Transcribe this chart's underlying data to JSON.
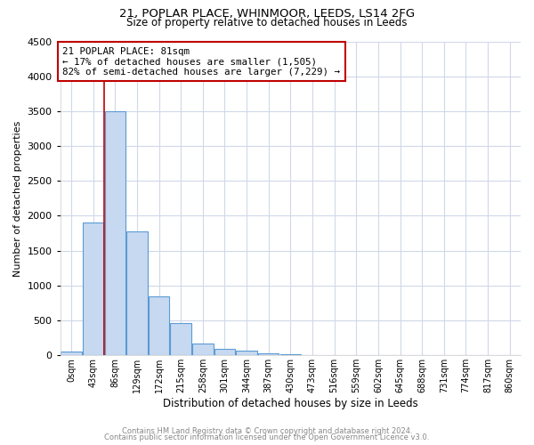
{
  "title": "21, POPLAR PLACE, WHINMOOR, LEEDS, LS14 2FG",
  "subtitle": "Size of property relative to detached houses in Leeds",
  "xlabel": "Distribution of detached houses by size in Leeds",
  "ylabel": "Number of detached properties",
  "bar_labels": [
    "0sqm",
    "43sqm",
    "86sqm",
    "129sqm",
    "172sqm",
    "215sqm",
    "258sqm",
    "301sqm",
    "344sqm",
    "387sqm",
    "430sqm",
    "473sqm",
    "516sqm",
    "559sqm",
    "602sqm",
    "645sqm",
    "688sqm",
    "731sqm",
    "774sqm",
    "817sqm",
    "860sqm"
  ],
  "bar_values": [
    50,
    1900,
    3500,
    1780,
    850,
    460,
    175,
    95,
    65,
    30,
    20,
    10,
    5,
    3,
    2,
    1,
    1,
    1,
    1,
    1,
    1
  ],
  "bar_color": "#c6d9f0",
  "bar_edge_color": "#5b9bd5",
  "vline_color": "#c00000",
  "annotation_text": "21 POPLAR PLACE: 81sqm\n← 17% of detached houses are smaller (1,505)\n82% of semi-detached houses are larger (7,229) →",
  "annotation_box_color": "#ffffff",
  "annotation_box_edge": "#c00000",
  "ylim": [
    0,
    4500
  ],
  "yticks": [
    0,
    500,
    1000,
    1500,
    2000,
    2500,
    3000,
    3500,
    4000,
    4500
  ],
  "footer1": "Contains HM Land Registry data © Crown copyright and database right 2024.",
  "footer2": "Contains public sector information licensed under the Open Government Licence v3.0.",
  "bg_color": "#ffffff",
  "grid_color": "#d0d8e8"
}
